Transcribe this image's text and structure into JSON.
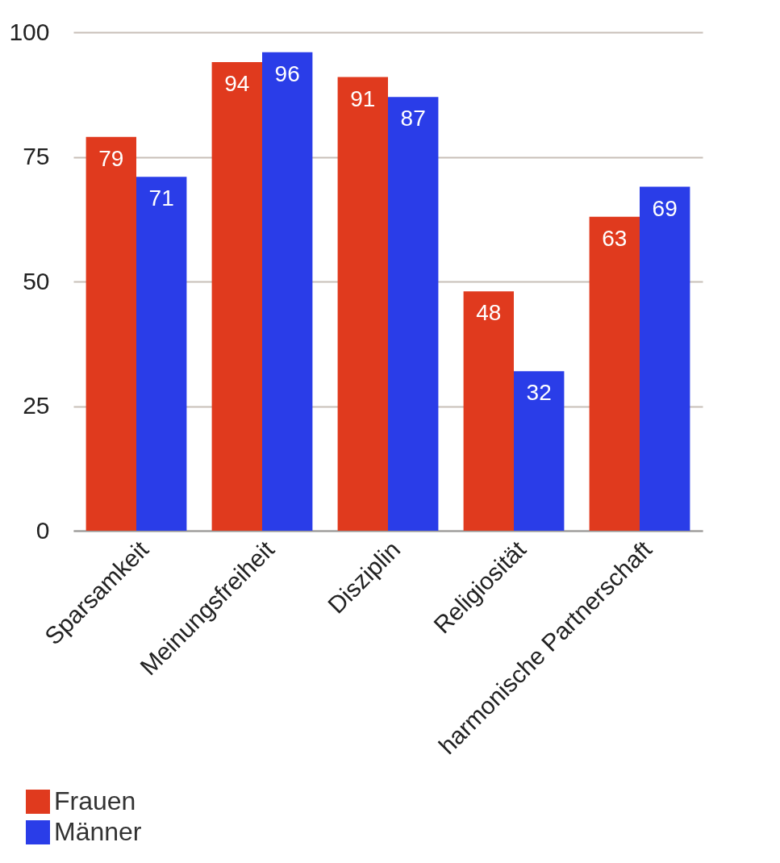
{
  "chart_data": {
    "type": "bar",
    "categories": [
      "Sparsamkeit",
      "Meinungsfreiheit",
      "Disziplin",
      "Religiosität",
      "harmonische Partnerschaft"
    ],
    "series": [
      {
        "name": "Frauen",
        "color": "#e03a1e",
        "values": [
          79,
          94,
          91,
          48,
          63
        ]
      },
      {
        "name": "Männer",
        "color": "#2a3de8",
        "values": [
          71,
          96,
          87,
          32,
          69
        ]
      }
    ],
    "ylim": [
      0,
      100
    ],
    "yticks": [
      0,
      25,
      50,
      75,
      100
    ],
    "grid": "y",
    "legend": "bottom left",
    "data_labels": true
  }
}
